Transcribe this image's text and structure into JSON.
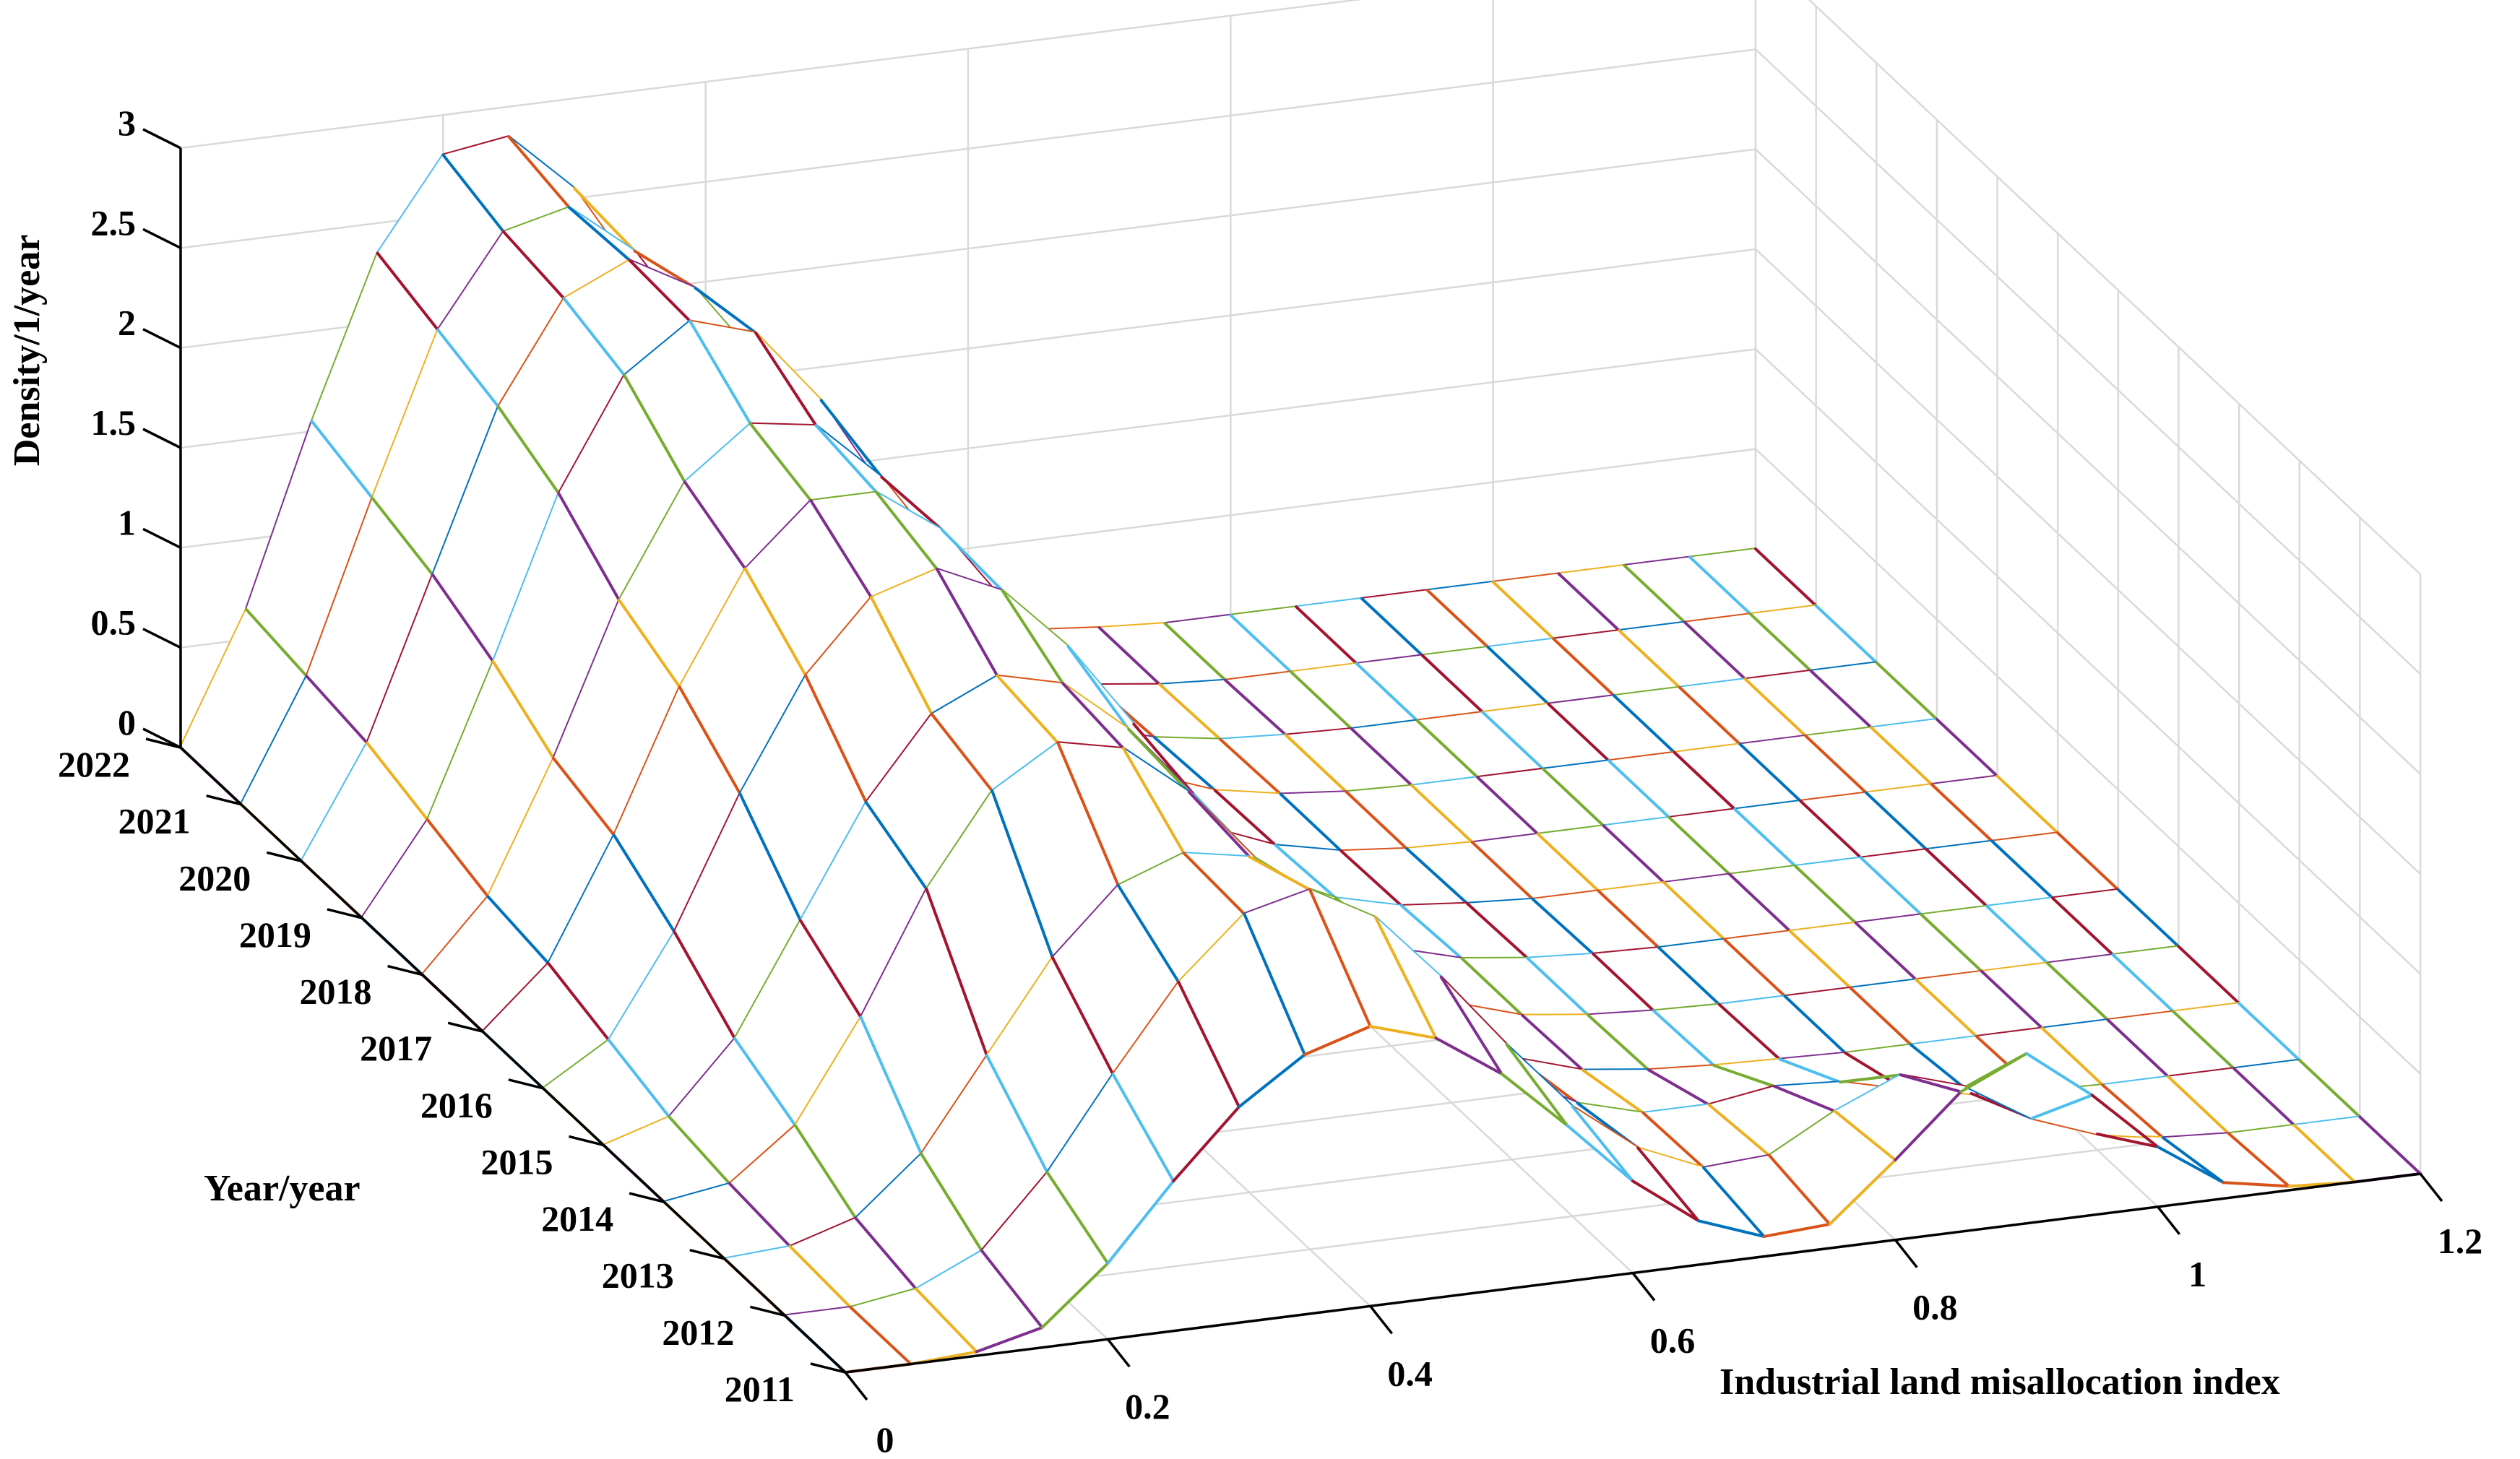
{
  "chart_data": {
    "type": "surface",
    "style": "3d-wireframe-waterfall",
    "xlabel": "Industrial land misallocation index",
    "ylabel": "Year/year",
    "zlabel": "Density/1/year",
    "xlim": [
      0,
      1.2
    ],
    "ylim": [
      2011,
      2022
    ],
    "zlim": [
      0,
      3
    ],
    "x_ticks": [
      "0",
      "0.2",
      "0.4",
      "0.6",
      "0.8",
      "1",
      "1.2"
    ],
    "y_ticks": [
      "2011",
      "2012",
      "2013",
      "2014",
      "2015",
      "2016",
      "2017",
      "2018",
      "2019",
      "2020",
      "2021",
      "2022"
    ],
    "z_ticks": [
      "0",
      "0.5",
      "1",
      "1.5",
      "2",
      "2.5",
      "3"
    ],
    "x_grid": [
      0,
      0.05,
      0.1,
      0.15,
      0.2,
      0.25,
      0.3,
      0.35,
      0.4,
      0.45,
      0.5,
      0.55,
      0.6,
      0.65,
      0.7,
      0.75,
      0.8,
      0.85,
      0.9,
      0.95,
      1.0,
      1.05,
      1.1,
      1.15,
      1.2
    ],
    "years": [
      2011,
      2012,
      2013,
      2014,
      2015,
      2016,
      2017,
      2018,
      2019,
      2020,
      2021,
      2022
    ],
    "density": [
      [
        0.0,
        0.0,
        0.02,
        0.1,
        0.38,
        0.75,
        1.08,
        1.3,
        1.4,
        1.3,
        1.08,
        0.78,
        0.46,
        0.22,
        0.1,
        0.12,
        0.4,
        0.7,
        0.85,
        0.6,
        0.3,
        0.08,
        0.02,
        0.0,
        0.0
      ],
      [
        0.0,
        0.0,
        0.05,
        0.2,
        0.55,
        1.0,
        1.42,
        1.72,
        1.8,
        1.62,
        1.28,
        0.9,
        0.55,
        0.3,
        0.16,
        0.18,
        0.36,
        0.5,
        0.4,
        0.2,
        0.08,
        0.02,
        0.0,
        0.0,
        0.0
      ],
      [
        0.0,
        0.02,
        0.12,
        0.4,
        0.85,
        1.3,
        1.62,
        1.74,
        1.68,
        1.45,
        1.1,
        0.72,
        0.42,
        0.24,
        0.15,
        0.15,
        0.2,
        0.18,
        0.1,
        0.04,
        0.01,
        0.0,
        0.0,
        0.0,
        0.0
      ],
      [
        0.0,
        0.05,
        0.3,
        0.8,
        1.4,
        1.85,
        2.05,
        1.98,
        1.72,
        1.35,
        0.96,
        0.62,
        0.36,
        0.18,
        0.08,
        0.04,
        0.02,
        0.01,
        0.0,
        0.0,
        0.0,
        0.0,
        0.0,
        0.0,
        0.0
      ],
      [
        0.0,
        0.1,
        0.45,
        1.0,
        1.55,
        1.95,
        2.1,
        2.02,
        1.75,
        1.38,
        0.98,
        0.62,
        0.35,
        0.17,
        0.07,
        0.03,
        0.01,
        0.0,
        0.0,
        0.0,
        0.0,
        0.0,
        0.0,
        0.0,
        0.0
      ],
      [
        0.0,
        0.2,
        0.7,
        1.35,
        1.9,
        2.25,
        2.35,
        2.2,
        1.88,
        1.45,
        1.0,
        0.62,
        0.34,
        0.16,
        0.07,
        0.03,
        0.01,
        0.0,
        0.0,
        0.0,
        0.0,
        0.0,
        0.0,
        0.0,
        0.0
      ],
      [
        0.0,
        0.3,
        0.9,
        1.6,
        2.15,
        2.45,
        2.45,
        2.22,
        1.8,
        1.32,
        0.88,
        0.52,
        0.28,
        0.13,
        0.05,
        0.02,
        0.0,
        0.0,
        0.0,
        0.0,
        0.0,
        0.0,
        0.0,
        0.0,
        0.0
      ],
      [
        0.0,
        0.35,
        1.0,
        1.75,
        2.3,
        2.55,
        2.5,
        2.2,
        1.75,
        1.25,
        0.8,
        0.46,
        0.24,
        0.11,
        0.04,
        0.01,
        0.0,
        0.0,
        0.0,
        0.0,
        0.0,
        0.0,
        0.0,
        0.0,
        0.0
      ],
      [
        0.0,
        0.45,
        1.2,
        2.0,
        2.55,
        2.78,
        2.68,
        2.3,
        1.78,
        1.24,
        0.78,
        0.44,
        0.22,
        0.1,
        0.04,
        0.01,
        0.0,
        0.0,
        0.0,
        0.0,
        0.0,
        0.0,
        0.0,
        0.0,
        0.0
      ],
      [
        0.0,
        0.55,
        1.35,
        2.15,
        2.65,
        2.8,
        2.62,
        2.2,
        1.66,
        1.14,
        0.7,
        0.38,
        0.18,
        0.08,
        0.03,
        0.01,
        0.0,
        0.0,
        0.0,
        0.0,
        0.0,
        0.0,
        0.0,
        0.0,
        0.0
      ],
      [
        0.0,
        0.6,
        1.45,
        2.25,
        2.7,
        2.78,
        2.52,
        2.05,
        1.52,
        1.02,
        0.62,
        0.33,
        0.15,
        0.06,
        0.02,
        0.0,
        0.0,
        0.0,
        0.0,
        0.0,
        0.0,
        0.0,
        0.0,
        0.0,
        0.0
      ],
      [
        0.0,
        0.65,
        1.55,
        2.35,
        2.8,
        2.85,
        2.55,
        2.05,
        1.48,
        0.98,
        0.58,
        0.3,
        0.14,
        0.05,
        0.02,
        0.0,
        0.0,
        0.0,
        0.0,
        0.0,
        0.0,
        0.0,
        0.0,
        0.0,
        0.0
      ]
    ],
    "colors": [
      "#0072BD",
      "#D95319",
      "#EDB120",
      "#7E2F8E",
      "#77AC30",
      "#4DBEEE",
      "#A2142F"
    ],
    "grid": true
  }
}
